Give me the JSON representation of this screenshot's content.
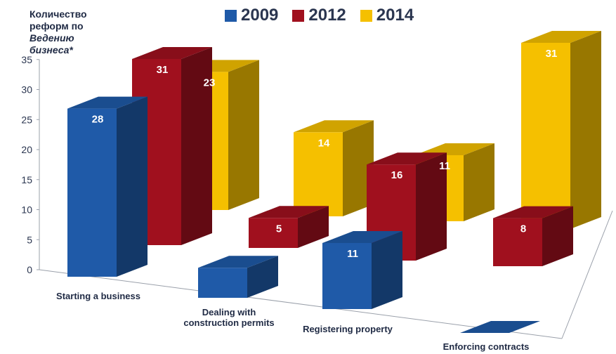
{
  "chart_data": {
    "type": "bar",
    "ylabel": {
      "line1": "Количество",
      "line2": "реформ по",
      "line3": "Ведению",
      "line4": "бизнеса*"
    },
    "ylim": [
      0,
      35
    ],
    "yticks": [
      "0",
      "5",
      "10",
      "15",
      "20",
      "25",
      "30",
      "35"
    ],
    "legend_position": "top",
    "categories": [
      "Starting a business",
      "Dealing with construction permits",
      "Registering property",
      "Enforcing contracts"
    ],
    "category_lines": [
      [
        "Starting a business"
      ],
      [
        "Dealing with",
        "construction permits"
      ],
      [
        "Registering property"
      ],
      [
        "Enforcing contracts"
      ]
    ],
    "series": [
      {
        "name": "2009",
        "color": "#1f5aa8",
        "values": [
          28,
          5,
          11,
          0
        ]
      },
      {
        "name": "2012",
        "color": "#a0101e",
        "values": [
          31,
          5,
          16,
          8
        ]
      },
      {
        "name": "2014",
        "color": "#f5c000",
        "values": [
          23,
          14,
          11,
          31
        ]
      }
    ],
    "data_labels": {
      "2009": [
        "28",
        "",
        "11",
        "0"
      ],
      "2012": [
        "31",
        "5",
        "16",
        "8"
      ],
      "2014": [
        "23",
        "14",
        "11",
        "31"
      ]
    }
  }
}
